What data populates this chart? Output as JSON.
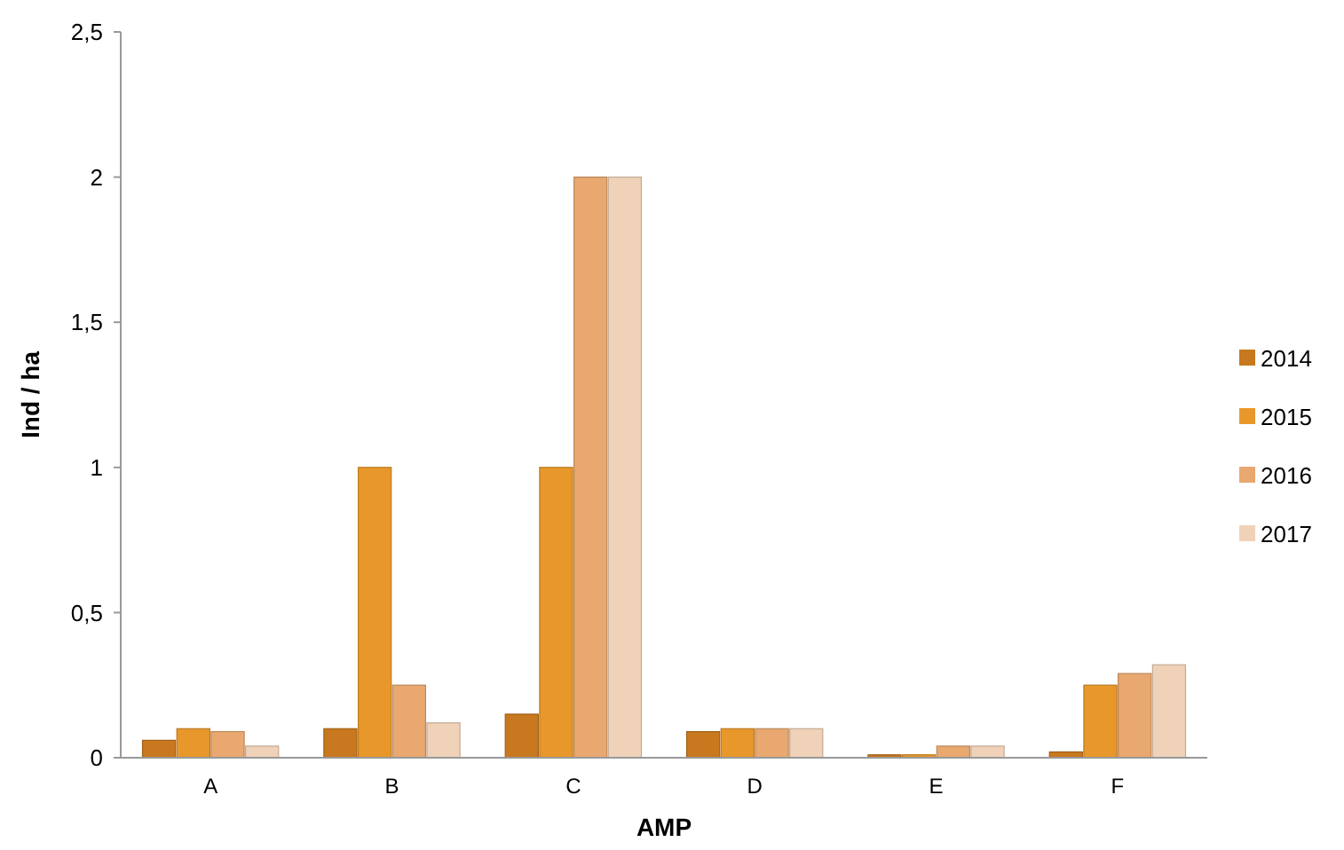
{
  "chart_data": {
    "type": "bar",
    "xlabel": "AMP",
    "ylabel": "Ind / ha",
    "categories": [
      "A",
      "B",
      "C",
      "D",
      "E",
      "F"
    ],
    "series": [
      {
        "name": "2014",
        "color": "#c8781e",
        "values": [
          0.06,
          0.1,
          0.15,
          0.09,
          0.01,
          0.02
        ]
      },
      {
        "name": "2015",
        "color": "#e8982a",
        "values": [
          0.1,
          1,
          1,
          0.1,
          0.01,
          0.25
        ]
      },
      {
        "name": "2016",
        "color": "#e8a870",
        "values": [
          0.09,
          0.25,
          2,
          0.1,
          0.04,
          0.29
        ]
      },
      {
        "name": "2017",
        "color": "#f0d2b8",
        "values": [
          0.04,
          0.12,
          2,
          0.1,
          0.04,
          0.32
        ]
      }
    ],
    "ylim": [
      0,
      2.5
    ],
    "yticks": [
      0,
      {
        "value": 0.5,
        "label": "0,5"
      },
      1,
      {
        "value": 1.5,
        "label": "1,5"
      },
      2,
      {
        "value": 2.5,
        "label": "2,5"
      }
    ],
    "grid": false,
    "legend": "right"
  }
}
